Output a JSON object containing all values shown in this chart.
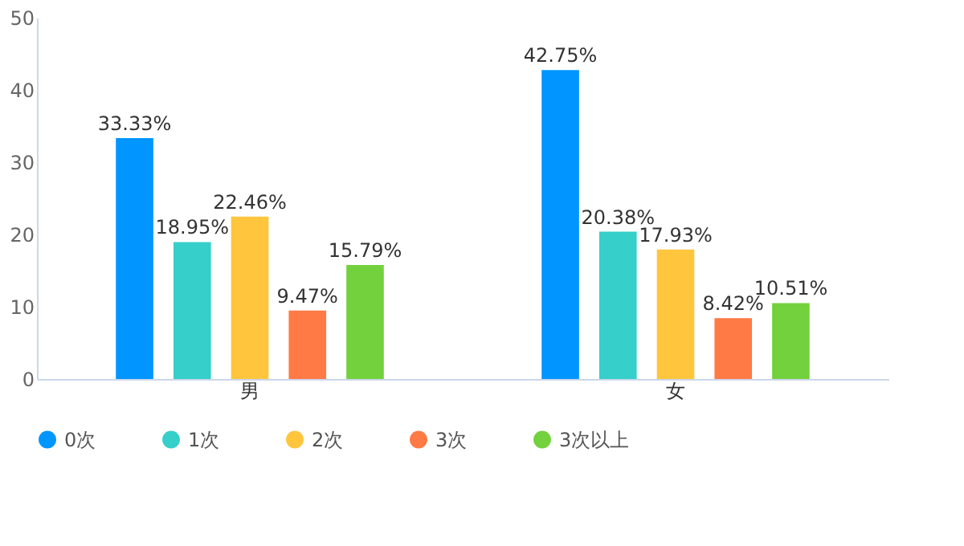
{
  "chart_data": {
    "type": "bar",
    "categories": [
      "男",
      "女"
    ],
    "series": [
      {
        "name": "0次",
        "color": "#0095ff",
        "values": [
          33.33,
          42.75
        ],
        "value_labels": [
          "33.33%",
          "42.75%"
        ]
      },
      {
        "name": "1次",
        "color": "#36cfc9",
        "values": [
          18.95,
          20.38
        ],
        "value_labels": [
          "18.95%",
          "20.38%"
        ]
      },
      {
        "name": "2次",
        "color": "#ffc53d",
        "values": [
          22.46,
          17.93
        ],
        "value_labels": [
          "22.46%",
          "17.93%"
        ]
      },
      {
        "name": "3次",
        "color": "#ff7a45",
        "values": [
          9.47,
          8.42
        ],
        "value_labels": [
          "9.47%",
          "8.42%"
        ]
      },
      {
        "name": "3次以上",
        "color": "#73d13d",
        "values": [
          15.79,
          10.51
        ],
        "value_labels": [
          "15.79%",
          "10.51%"
        ]
      }
    ],
    "ylim": [
      0,
      50
    ],
    "yticks": [
      0,
      10,
      20,
      30,
      40,
      50
    ],
    "grid": false,
    "legend": "bottom"
  }
}
